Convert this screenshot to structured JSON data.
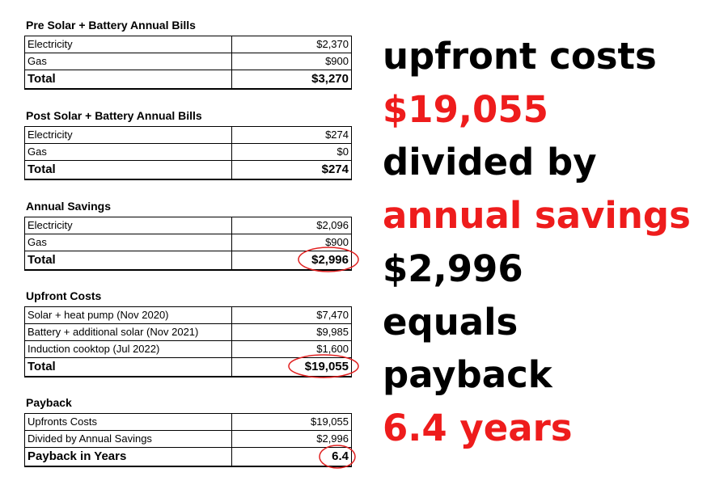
{
  "tables": [
    {
      "title": "Pre Solar + Battery Annual Bills",
      "rows": [
        [
          "Electricity",
          "$2,370"
        ],
        [
          "Gas",
          "$900"
        ],
        [
          "Total",
          "$3,270"
        ]
      ]
    },
    {
      "title": "Post Solar + Battery Annual Bills",
      "rows": [
        [
          "Electricity",
          "$274"
        ],
        [
          "Gas",
          "$0"
        ],
        [
          "Total",
          "$274"
        ]
      ]
    },
    {
      "title": "Annual Savings",
      "rows": [
        [
          "Electricity",
          "$2,096"
        ],
        [
          "Gas",
          "$900"
        ],
        [
          "Total",
          "$2,996"
        ]
      ]
    },
    {
      "title": "Upfront Costs",
      "rows": [
        [
          "Solar + heat pump (Nov 2020)",
          "$7,470"
        ],
        [
          "Battery + additional solar (Nov 2021)",
          "$9,985"
        ],
        [
          "Induction cooktop (Jul 2022)",
          "$1,600"
        ],
        [
          "Total",
          "$19,055"
        ]
      ]
    },
    {
      "title": "Payback",
      "rows": [
        [
          "Upfronts Costs",
          "$19,055"
        ],
        [
          "Divided by Annual Savings",
          "$2,996"
        ],
        [
          "Payback in Years",
          "6.4"
        ]
      ]
    }
  ],
  "summary": [
    "upfront costs",
    "$19,055",
    "divided by",
    "annual savings",
    "$2,996",
    "equals",
    "payback",
    "6.4 years"
  ]
}
